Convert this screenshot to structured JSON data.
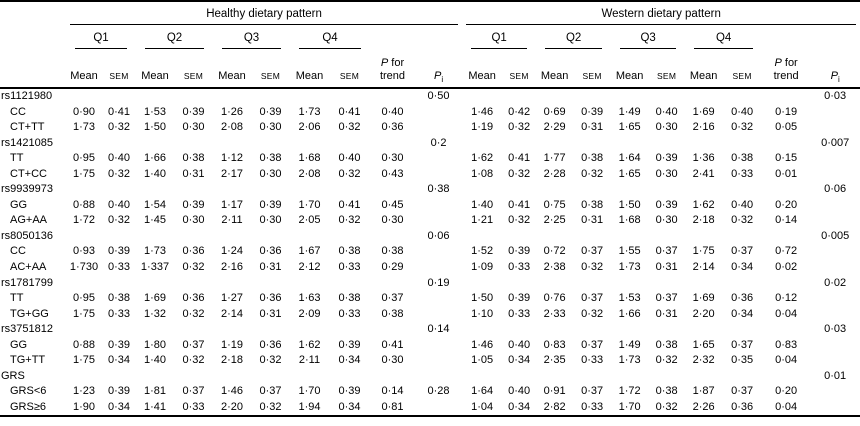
{
  "table": {
    "groups": [
      {
        "label": "Healthy dietary pattern"
      },
      {
        "label": "Western dietary pattern"
      }
    ],
    "quartiles": [
      "Q1",
      "Q2",
      "Q3",
      "Q4"
    ],
    "mean_label": "Mean",
    "sem_label": "SEM",
    "p_italic": "P",
    "p_for_rest": " for",
    "p_trend_word": "trend",
    "pi_subscript": "i",
    "rows": [
      {
        "type": "section",
        "label": "rs1121980",
        "h_pi": "0·50",
        "w_pi": "0·03"
      },
      {
        "type": "data",
        "label": "CC",
        "h": [
          "0·90",
          "0·41",
          "1·53",
          "0·39",
          "1·26",
          "0·39",
          "1·73",
          "0·41"
        ],
        "h_pt": "0·40",
        "w": [
          "1·46",
          "0·42",
          "0·69",
          "0·39",
          "1·49",
          "0·40",
          "1·69",
          "0·40"
        ],
        "w_pt": "0·19"
      },
      {
        "type": "data",
        "label": "CT+TT",
        "h": [
          "1·73",
          "0·32",
          "1·50",
          "0·30",
          "2·08",
          "0·30",
          "2·06",
          "0·32"
        ],
        "h_pt": "0·36",
        "w": [
          "1·19",
          "0·32",
          "2·29",
          "0·31",
          "1·65",
          "0·30",
          "2·16",
          "0·32"
        ],
        "w_pt": "0·05"
      },
      {
        "type": "section",
        "label": "rs1421085",
        "h_pi": "0·2",
        "w_pi": "0·007"
      },
      {
        "type": "data",
        "label": "TT",
        "h": [
          "0·95",
          "0·40",
          "1·66",
          "0·38",
          "1·12",
          "0·38",
          "1·68",
          "0·40"
        ],
        "h_pt": "0·30",
        "w": [
          "1·62",
          "0·41",
          "1·77",
          "0·38",
          "1·64",
          "0·39",
          "1·36",
          "0·38"
        ],
        "w_pt": "0·15"
      },
      {
        "type": "data",
        "label": "CT+CC",
        "h": [
          "1·75",
          "0·32",
          "1·40",
          "0·31",
          "2·17",
          "0·30",
          "2·08",
          "0·32"
        ],
        "h_pt": "0·43",
        "w": [
          "1·08",
          "0·32",
          "2·28",
          "0·32",
          "1·65",
          "0·30",
          "2·41",
          "0·33"
        ],
        "w_pt": "0·01"
      },
      {
        "type": "section",
        "label": "rs9939973",
        "h_pi": "0·38",
        "w_pi": "0·06"
      },
      {
        "type": "data",
        "label": "GG",
        "h": [
          "0·88",
          "0·40",
          "1·54",
          "0·39",
          "1·17",
          "0·39",
          "1·70",
          "0·41"
        ],
        "h_pt": "0·45",
        "w": [
          "1·40",
          "0·41",
          "0·75",
          "0·38",
          "1·50",
          "0·39",
          "1·62",
          "0·40"
        ],
        "w_pt": "0·20"
      },
      {
        "type": "data",
        "label": "AG+AA",
        "h": [
          "1·72",
          "0·32",
          "1·45",
          "0·30",
          "2·11",
          "0·30",
          "2·05",
          "0·32"
        ],
        "h_pt": "0·30",
        "w": [
          "1·21",
          "0·32",
          "2·25",
          "0·31",
          "1·68",
          "0·30",
          "2·18",
          "0·32"
        ],
        "w_pt": "0·14"
      },
      {
        "type": "section",
        "label": "rs8050136",
        "h_pi": "0·06",
        "w_pi": "0·005"
      },
      {
        "type": "data",
        "label": "CC",
        "h": [
          "0·93",
          "0·39",
          "1·73",
          "0·36",
          "1·24",
          "0·36",
          "1·67",
          "0·38"
        ],
        "h_pt": "0·38",
        "w": [
          "1·52",
          "0·39",
          "0·72",
          "0·37",
          "1·55",
          "0·37",
          "1·75",
          "0·37"
        ],
        "w_pt": "0·72"
      },
      {
        "type": "data",
        "label": "AC+AA",
        "h": [
          "1·730",
          "0·33",
          "1·337",
          "0·32",
          "2·16",
          "0·31",
          "2·12",
          "0·33"
        ],
        "h_pt": "0·29",
        "w": [
          "1·09",
          "0·33",
          "2·38",
          "0·32",
          "1·73",
          "0·31",
          "2·14",
          "0·34"
        ],
        "w_pt": "0·02"
      },
      {
        "type": "section",
        "label": "rs1781799",
        "h_pi": "0·19",
        "w_pi": "0·02"
      },
      {
        "type": "data",
        "label": "TT",
        "h": [
          "0·95",
          "0·38",
          "1·69",
          "0·36",
          "1·27",
          "0·36",
          "1·63",
          "0·38"
        ],
        "h_pt": "0·37",
        "w": [
          "1·50",
          "0·39",
          "0·76",
          "0·37",
          "1·53",
          "0·37",
          "1·69",
          "0·36"
        ],
        "w_pt": "0·12"
      },
      {
        "type": "data",
        "label": "TG+GG",
        "h": [
          "1·75",
          "0·33",
          "1·32",
          "0·32",
          "2·14",
          "0·31",
          "2·09",
          "0·33"
        ],
        "h_pt": "0·38",
        "w": [
          "1·10",
          "0·33",
          "2·33",
          "0·32",
          "1·66",
          "0·31",
          "2·20",
          "0·34"
        ],
        "w_pt": "0·04"
      },
      {
        "type": "section",
        "label": "rs3751812",
        "h_pi": "0·14",
        "w_pi": "0·03"
      },
      {
        "type": "data",
        "label": "GG",
        "h": [
          "0·88",
          "0·39",
          "1·80",
          "0·37",
          "1·19",
          "0·36",
          "1·62",
          "0·39"
        ],
        "h_pt": "0·41",
        "w": [
          "1·46",
          "0·40",
          "0·83",
          "0·37",
          "1·49",
          "0·38",
          "1·65",
          "0·37"
        ],
        "w_pt": "0·83"
      },
      {
        "type": "data",
        "label": "TG+TT",
        "h": [
          "1·75",
          "0·34",
          "1·40",
          "0·32",
          "2·18",
          "0·32",
          "2·11",
          "0·34"
        ],
        "h_pt": "0·30",
        "w": [
          "1·05",
          "0·34",
          "2·35",
          "0·33",
          "1·73",
          "0·32",
          "2·32",
          "0·35"
        ],
        "w_pt": "0·04"
      },
      {
        "type": "section",
        "label": "GRS",
        "w_pi": "0·01"
      },
      {
        "type": "data",
        "label": "GRS<6",
        "h": [
          "1·23",
          "0·39",
          "1·81",
          "0·37",
          "1·46",
          "0·37",
          "1·70",
          "0·39"
        ],
        "h_pt": "0·14",
        "h_pi": "0·28",
        "w": [
          "1·64",
          "0·40",
          "0·91",
          "0·37",
          "1·72",
          "0·38",
          "1·87",
          "0·37"
        ],
        "w_pt": "0·20"
      },
      {
        "type": "data",
        "label": "GRS≥6",
        "h": [
          "1·90",
          "0·34",
          "1·41",
          "0·33",
          "2·20",
          "0·32",
          "1·94",
          "0·34"
        ],
        "h_pt": "0·81",
        "w": [
          "1·04",
          "0·34",
          "2·82",
          "0·33",
          "1·70",
          "0·32",
          "2·26",
          "0·36"
        ],
        "w_pt": "0·04"
      }
    ]
  }
}
